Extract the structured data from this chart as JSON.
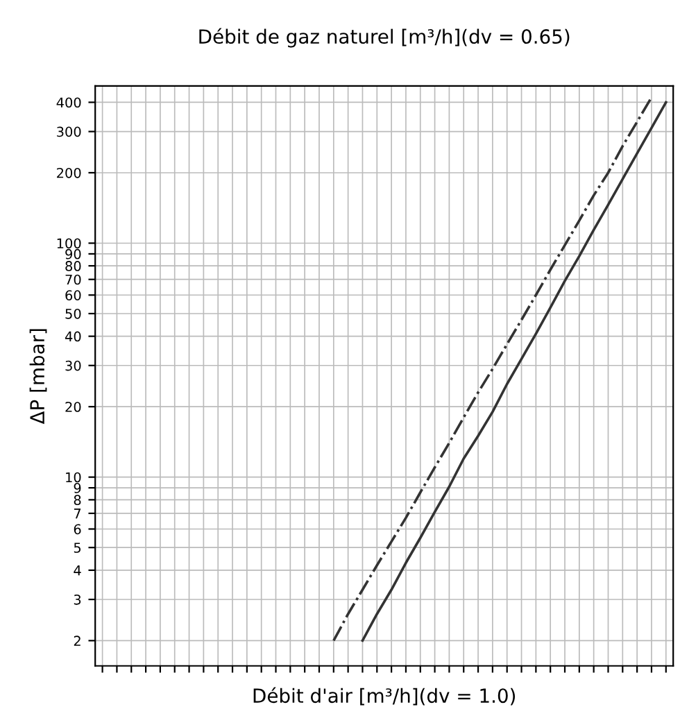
{
  "chart_data": {
    "type": "line",
    "title": "Débit de gaz naturel [m³/h](dv = 0.65)",
    "xlabel": "Débit d'air [m³/h](dv = 1.0)",
    "ylabel": "ΔP [mbar]",
    "log": "y",
    "grid": true,
    "tick_labels": "y",
    "categories": [
      null,
      null,
      null,
      null,
      null,
      null,
      null,
      null,
      null,
      null,
      null,
      null,
      null,
      null,
      null,
      null,
      null,
      null,
      null,
      null,
      null,
      null,
      null,
      null,
      null,
      null,
      null,
      null,
      null,
      null,
      null,
      null,
      null,
      null,
      null,
      null,
      null,
      null,
      null,
      null
    ],
    "ylim": [
      1.56,
      470
    ],
    "yticks": [
      2,
      3,
      4,
      5,
      6,
      7,
      8,
      9,
      10,
      20,
      30,
      40,
      50,
      60,
      70,
      80,
      90,
      100,
      200,
      300,
      400
    ],
    "series": [
      {
        "color": "#333333",
        "line_style": "dashdot",
        "values": [
          null,
          null,
          null,
          null,
          null,
          null,
          null,
          null,
          null,
          null,
          null,
          null,
          null,
          null,
          null,
          null,
          2,
          2.6,
          3.3,
          4.2,
          5.3,
          6.7,
          8.6,
          11,
          14,
          18,
          23,
          29,
          37,
          47,
          60,
          77,
          98,
          125,
          160,
          200,
          260,
          330,
          420,
          null
        ]
      },
      {
        "color": "#333333",
        "line_style": "solid",
        "values": [
          null,
          null,
          null,
          null,
          null,
          null,
          null,
          null,
          null,
          null,
          null,
          null,
          null,
          null,
          null,
          null,
          null,
          null,
          2,
          2.6,
          3.3,
          4.3,
          5.5,
          7.1,
          9.1,
          12,
          15,
          19,
          25,
          32,
          41,
          53,
          69,
          88,
          114,
          146,
          188,
          242,
          311,
          400
        ]
      }
    ]
  }
}
